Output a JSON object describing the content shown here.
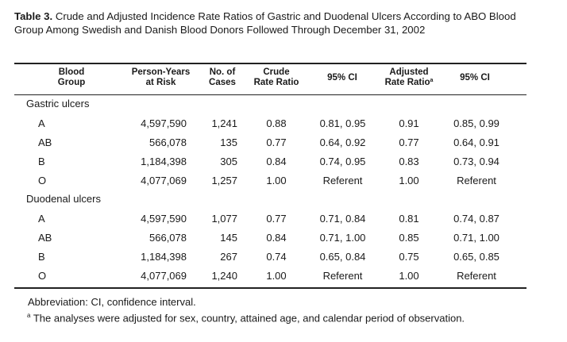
{
  "caption": {
    "label": "Table 3.",
    "text": "Crude and Adjusted Incidence Rate Ratios of Gastric and Duodenal Ulcers According to ABO Blood Group Among Swedish and Danish Blood Donors Followed Through December 31, 2002"
  },
  "headers": {
    "group_line1": "Blood",
    "group_line2": "Group",
    "py_line1": "Person-Years",
    "py_line2": "at Risk",
    "cases_line1": "No. of",
    "cases_line2": "Cases",
    "crude_line1": "Crude",
    "crude_line2": "Rate Ratio",
    "ci1": "95% CI",
    "adj_line1": "Adjusted",
    "adj_line2": "Rate Ratio",
    "adj_marker": "a",
    "ci2": "95% CI"
  },
  "sections": [
    {
      "title": "Gastric ulcers",
      "rows": [
        {
          "group": "A",
          "py": "4,597,590",
          "cases": "1,241",
          "crude": "0.88",
          "ci1": "0.81, 0.95",
          "adj": "0.91",
          "ci2": "0.85, 0.99"
        },
        {
          "group": "AB",
          "py": "566,078",
          "cases": "135",
          "crude": "0.77",
          "ci1": "0.64, 0.92",
          "adj": "0.77",
          "ci2": "0.64, 0.91"
        },
        {
          "group": "B",
          "py": "1,184,398",
          "cases": "305",
          "crude": "0.84",
          "ci1": "0.74, 0.95",
          "adj": "0.83",
          "ci2": "0.73, 0.94"
        },
        {
          "group": "O",
          "py": "4,077,069",
          "cases": "1,257",
          "crude": "1.00",
          "ci1": "Referent",
          "adj": "1.00",
          "ci2": "Referent"
        }
      ]
    },
    {
      "title": "Duodenal ulcers",
      "rows": [
        {
          "group": "A",
          "py": "4,597,590",
          "cases": "1,077",
          "crude": "0.77",
          "ci1": "0.71, 0.84",
          "adj": "0.81",
          "ci2": "0.74, 0.87"
        },
        {
          "group": "AB",
          "py": "566,078",
          "cases": "145",
          "crude": "0.84",
          "ci1": "0.71, 1.00",
          "adj": "0.85",
          "ci2": "0.71, 1.00"
        },
        {
          "group": "B",
          "py": "1,184,398",
          "cases": "267",
          "crude": "0.74",
          "ci1": "0.65, 0.84",
          "adj": "0.75",
          "ci2": "0.65, 0.85"
        },
        {
          "group": "O",
          "py": "4,077,069",
          "cases": "1,240",
          "crude": "1.00",
          "ci1": "Referent",
          "adj": "1.00",
          "ci2": "Referent"
        }
      ]
    }
  ],
  "footnotes": {
    "abbreviation": "Abbreviation: CI, confidence interval.",
    "note_marker": "a",
    "note_text": "The analyses were adjusted for sex, country, attained age, and calendar period of observation."
  }
}
